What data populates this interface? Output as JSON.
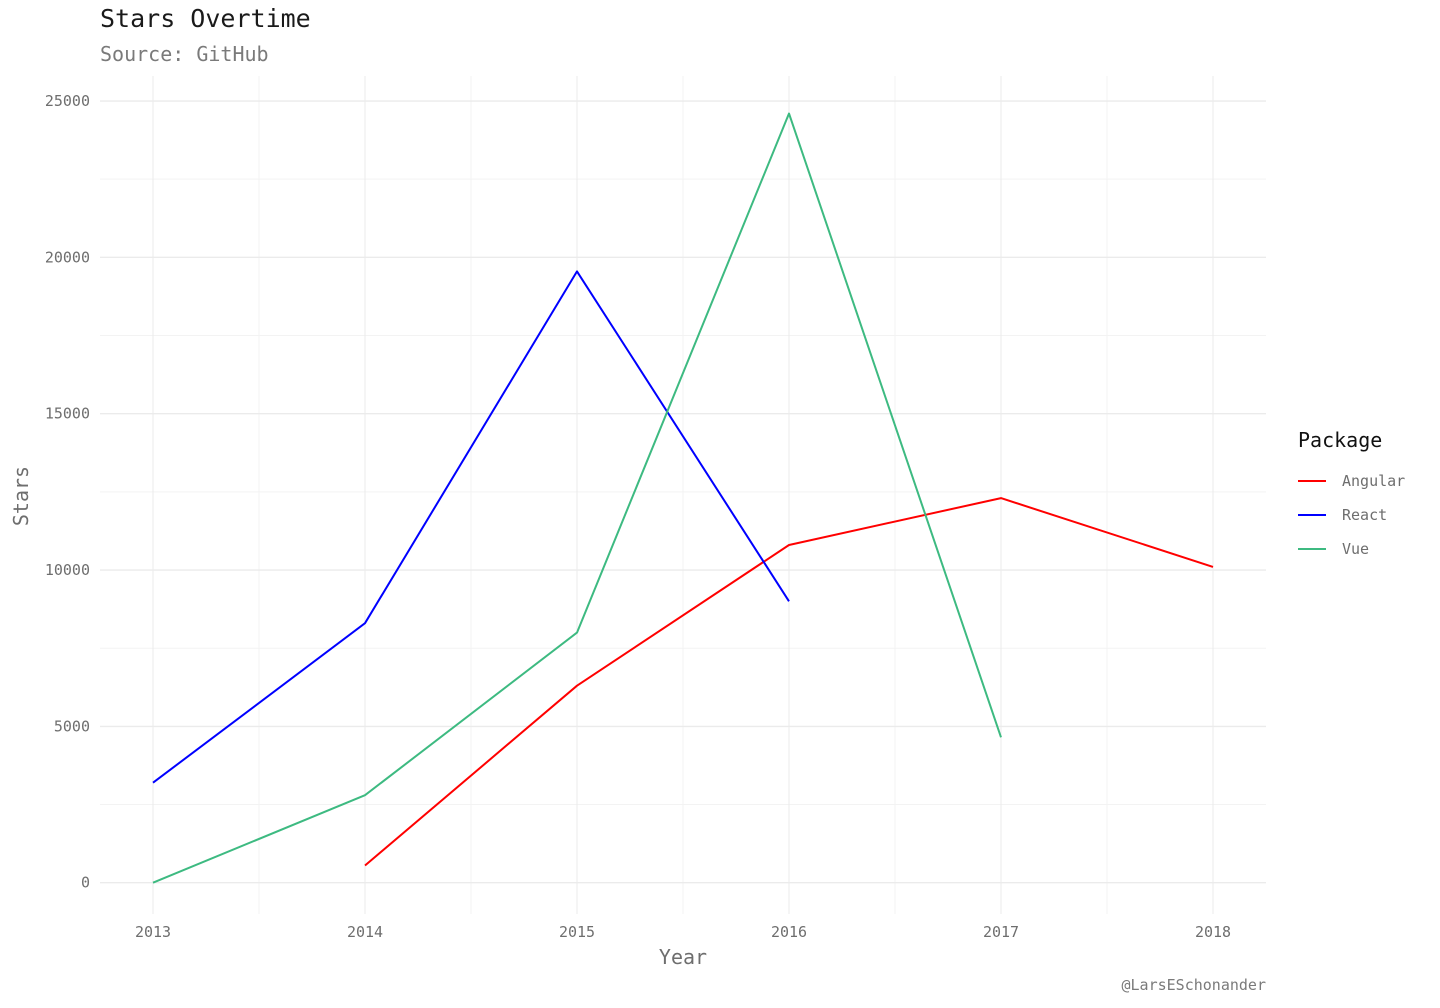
{
  "chart_data": {
    "type": "line",
    "title": "Stars Overtime",
    "subtitle": "Source: GitHub",
    "caption": "@LarsESchonander",
    "xlabel": "Year",
    "ylabel": "Stars",
    "x": [
      2013,
      2014,
      2015,
      2016,
      2017,
      2018
    ],
    "x_ticks": [
      "2013",
      "2014",
      "2015",
      "2016",
      "2017",
      "2018"
    ],
    "y_ticks": [
      "0",
      "5000",
      "10000",
      "15000",
      "20000",
      "25000"
    ],
    "xlim": [
      2012.75,
      2018.25
    ],
    "ylim": [
      -1000,
      25800
    ],
    "grid": true,
    "legend_title": "Package",
    "legend_position": "right",
    "series": [
      {
        "name": "Angular",
        "color": "#ff0000",
        "values": [
          null,
          550,
          6300,
          10800,
          12300,
          10100
        ]
      },
      {
        "name": "React",
        "color": "#0000ff",
        "values": [
          3200,
          8300,
          19550,
          9000,
          null,
          null
        ]
      },
      {
        "name": "Vue",
        "color": "#3dba81",
        "values": [
          0,
          2800,
          8000,
          24600,
          4650,
          null
        ]
      }
    ]
  }
}
